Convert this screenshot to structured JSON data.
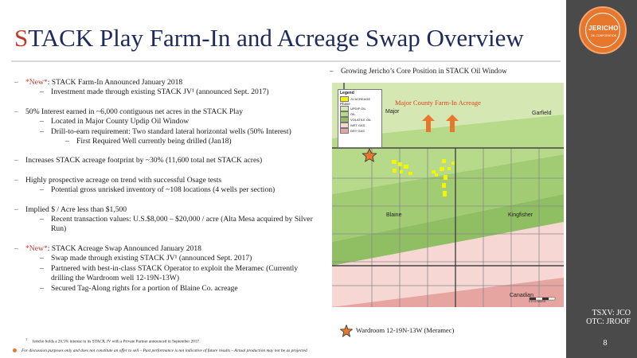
{
  "title": {
    "first_letter": "S",
    "rest": "TACK Play Farm-In and Acreage Swap Overview"
  },
  "bullets": [
    {
      "level": 1,
      "parts": [
        {
          "text": "*New*",
          "new": true
        },
        {
          "text": ": STACK Farm-In Announced January 2018"
        }
      ]
    },
    {
      "level": 2,
      "parts": [
        {
          "text": "Investment made through existing STACK JV¹ (announced Sept. 2017)"
        }
      ]
    },
    {
      "level": 0
    },
    {
      "level": 1,
      "parts": [
        {
          "text": "50% Interest earned in ~6,000 contiguous net acres in the STACK Play"
        }
      ]
    },
    {
      "level": 2,
      "parts": [
        {
          "text": "Located in Major County Updip Oil Window"
        }
      ]
    },
    {
      "level": 2,
      "parts": [
        {
          "text": "Drill-to-earn requirement: Two standard lateral horizontal wells (50% Interest)"
        }
      ]
    },
    {
      "level": 3,
      "parts": [
        {
          "text": "First Required Well currently being drilled (Jan18)"
        }
      ]
    },
    {
      "level": 0
    },
    {
      "level": 1,
      "parts": [
        {
          "text": "Increases STACK acreage footprint by ~30% (11,600 total net STACK acres)"
        }
      ]
    },
    {
      "level": 0
    },
    {
      "level": 1,
      "parts": [
        {
          "text": "Highly prospective acreage on trend with successful Osage tests"
        }
      ]
    },
    {
      "level": 2,
      "parts": [
        {
          "text": "Potential gross unrisked inventory of ~108 locations (4 wells per section)"
        }
      ]
    },
    {
      "level": 0
    },
    {
      "level": 1,
      "parts": [
        {
          "text": "Implied $ / Acre less than $1,500"
        }
      ]
    },
    {
      "level": 2,
      "parts": [
        {
          "text": "Recent transaction values: U.S.$8,000 – $20,000 / acre (Alta Mesa acquired by Silver Run)"
        }
      ]
    },
    {
      "level": 0
    },
    {
      "level": 1,
      "parts": [
        {
          "text": "*New*",
          "new": true
        },
        {
          "text": ": STACK Acreage Swap Announced January 2018"
        }
      ]
    },
    {
      "level": 2,
      "parts": [
        {
          "text": "Swap made through existing STACK JV¹ (announced Sept. 2017)"
        }
      ]
    },
    {
      "level": 2,
      "parts": [
        {
          "text": "Partnered with best-in-class STACK Operator to exploit the Meramec (Currently drilling the Wardroom well 12-19N-13W)"
        }
      ]
    },
    {
      "level": 2,
      "parts": [
        {
          "text": "Secured Tag-Along rights for a portion of Blaine Co. acreage"
        }
      ]
    }
  ],
  "map": {
    "caption": "Growing Jericho’s Core Position in STACK Oil Window",
    "farm_in_label": "Major County Farm-In Acreage",
    "county_labels": {
      "major": "Major",
      "garfield": "Garfield",
      "blaine": "Blaine",
      "kingfisher": "Kingfisher",
      "canadian": "Canadian"
    },
    "legend": {
      "title": "Legend",
      "jv_acreage": "JV ACREAGE",
      "phase_title": "Phase",
      "items": [
        "UPDIP OIL",
        "OIL",
        "VOLATILE OIL",
        "WET GAS",
        "DRY GAS"
      ]
    },
    "scale_label": "0   5   10 MILES"
  },
  "well_legend": "Wardroom 12-19N-13W (Meramec)",
  "logo": {
    "name": "JERICHO",
    "sub": "OIL CORPORATION"
  },
  "ticker": {
    "line1": "TSXV: JCO",
    "line2": "OTC: JROOF"
  },
  "page_number": "8",
  "footnote": {
    "mark": "1",
    "text": "Jericho holds a 26.5% interest in its STACK JV with a Private Partner announced in September 2017"
  },
  "disclaimer": "For discussion purposes only and does not constitute an offer to sell – Past performance is not indicative of future results – Actual production may not be as projected",
  "colors": {
    "title": "#1d2a5c",
    "accent": "#c0392b",
    "orange": "#e8772e",
    "sidebar": "#4a4a4a",
    "updip_oil": "#d5e8b4",
    "oil": "#b6d98a",
    "volatile_oil": "#8fbf62",
    "wet_gas": "#f7d7d3",
    "dry_gas": "#e6a5a0",
    "jv_acreage": "#f5f500"
  }
}
